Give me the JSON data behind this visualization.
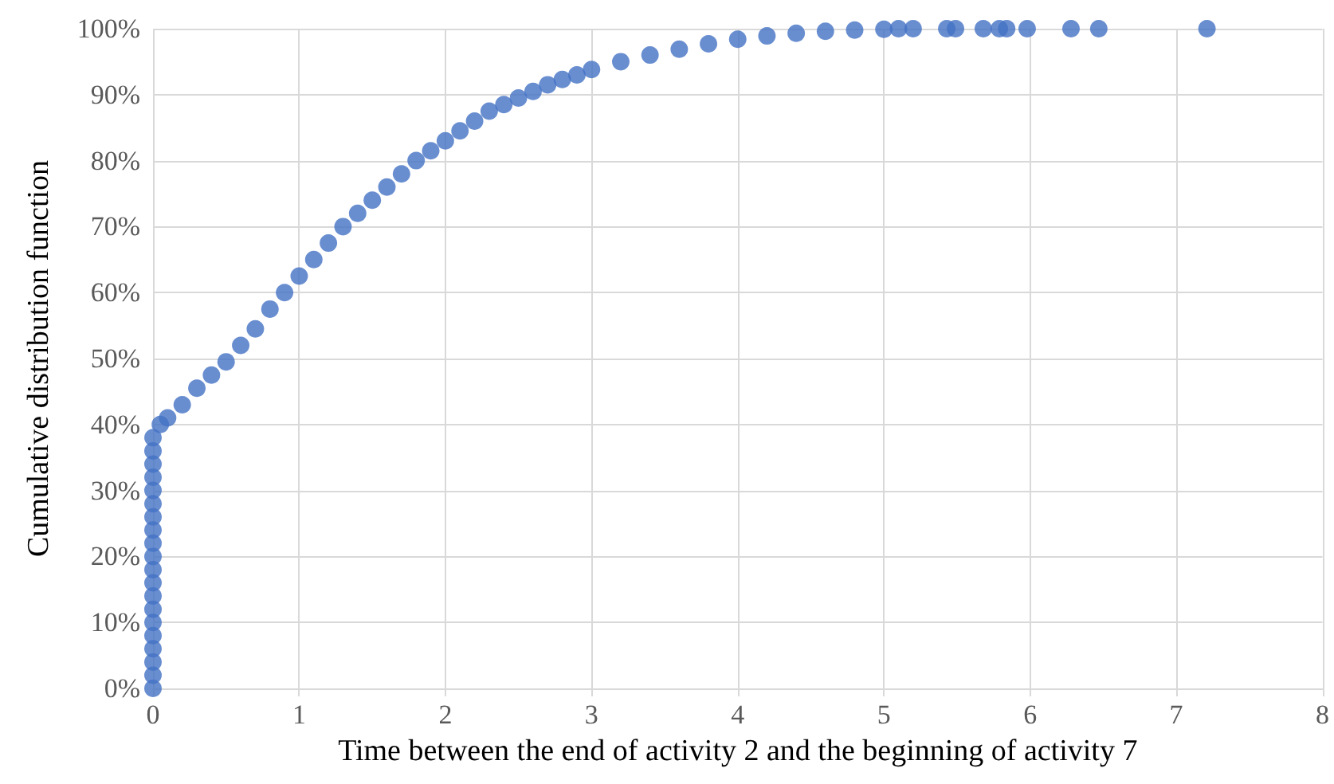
{
  "chart_data": {
    "type": "scatter",
    "xlabel": "Time between the end of activity 2 and the beginning of activity 7",
    "ylabel": "Cumulative distribution function",
    "x": [
      0,
      0,
      0,
      0,
      0,
      0,
      0,
      0,
      0,
      0,
      0,
      0,
      0,
      0,
      0,
      0,
      0,
      0,
      0,
      0,
      0.05,
      0.1,
      0.2,
      0.3,
      0.4,
      0.5,
      0.6,
      0.7,
      0.8,
      0.9,
      1.0,
      1.1,
      1.2,
      1.3,
      1.4,
      1.5,
      1.6,
      1.7,
      1.8,
      1.9,
      2.0,
      2.1,
      2.2,
      2.3,
      2.4,
      2.5,
      2.6,
      2.7,
      2.8,
      2.9,
      3.0,
      3.2,
      3.4,
      3.6,
      3.8,
      4.0,
      4.2,
      4.4,
      4.6,
      4.8,
      5.0,
      5.1,
      5.2,
      5.43,
      5.49,
      5.68,
      5.79,
      5.84,
      5.98,
      6.28,
      6.47,
      7.21
    ],
    "series": [
      {
        "color": "#4472c4",
        "values": [
          0,
          2,
          4,
          6,
          8,
          10,
          12,
          14,
          16,
          18,
          20,
          22,
          24,
          26,
          28,
          30,
          32,
          34,
          36,
          38,
          40,
          41,
          43,
          45.5,
          47.5,
          49.5,
          52,
          54.5,
          57.5,
          60,
          62.5,
          65,
          67.5,
          70,
          72,
          74,
          76,
          78,
          80,
          81.5,
          83,
          84.5,
          86,
          87.5,
          88.5,
          89.5,
          90.5,
          91.5,
          92.3,
          93,
          93.8,
          95,
          96,
          96.9,
          97.7,
          98.4,
          98.9,
          99.3,
          99.6,
          99.8,
          99.9,
          100,
          100,
          100,
          100,
          100,
          100,
          100,
          100,
          100,
          100,
          100
        ]
      }
    ],
    "xlim": [
      0,
      8
    ],
    "xticks": [
      0,
      1,
      2,
      3,
      4,
      5,
      6,
      7,
      8
    ],
    "ylim": [
      0,
      100
    ],
    "yticks": [
      {
        "value": 0,
        "label": "0%"
      },
      {
        "value": 10,
        "label": "10%"
      },
      {
        "value": 20,
        "label": "20%"
      },
      {
        "value": 30,
        "label": "30%"
      },
      {
        "value": 40,
        "label": "40%"
      },
      {
        "value": 50,
        "label": "50%"
      },
      {
        "value": 60,
        "label": "60%"
      },
      {
        "value": 70,
        "label": "70%"
      },
      {
        "value": 80,
        "label": "80%"
      },
      {
        "value": 90,
        "label": "90%"
      },
      {
        "value": 100,
        "label": "100%"
      }
    ],
    "grid": true,
    "marker": "circle"
  }
}
